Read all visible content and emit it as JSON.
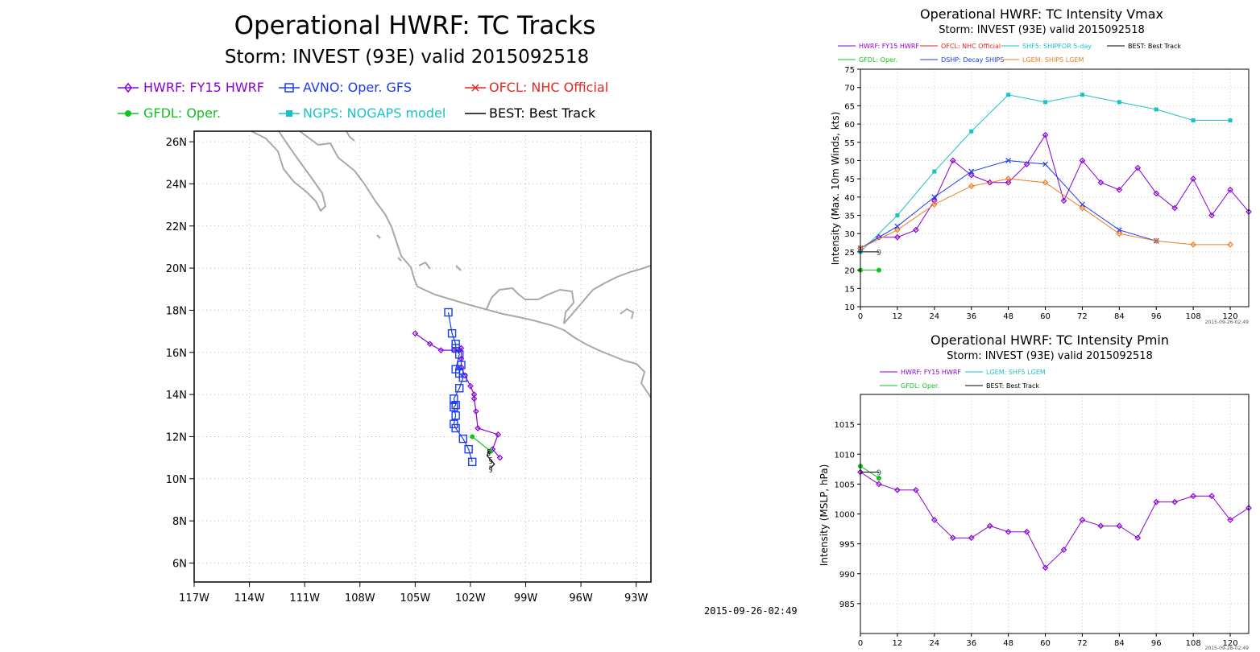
{
  "track_panel": {
    "title": "Operational HWRF: TC Tracks",
    "subtitle": "Storm: INVEST (93E) valid 2015092518",
    "legend": [
      {
        "label": "HWRF: FY15 HWRF",
        "color": "#8a00d8",
        "marker": "diamond"
      },
      {
        "label": "AVNO: Oper. GFS",
        "color": "#1a3cf0",
        "marker": "square-open"
      },
      {
        "label": "OFCL: NHC Official",
        "color": "#e8271e",
        "marker": "x"
      },
      {
        "label": "GFDL: Oper.",
        "color": "#11c31d",
        "marker": "circle"
      },
      {
        "label": "NGPS: NOGAPS model",
        "color": "#19c2c8",
        "marker": "square"
      },
      {
        "label": "BEST: Best Track",
        "color": "#000000",
        "marker": "none"
      }
    ],
    "x_ticks": [
      "117W",
      "114W",
      "111W",
      "108W",
      "105W",
      "102W",
      "99W",
      "96W",
      "93W"
    ],
    "y_ticks": [
      "26N",
      "24N",
      "22N",
      "20N",
      "18N",
      "16N",
      "14N",
      "12N",
      "10N",
      "8N",
      "6N"
    ],
    "timestamp": "2015-09-26-02:49"
  },
  "vmax_panel": {
    "title": "Operational HWRF: TC Intensity Vmax",
    "subtitle": "Storm: INVEST (93E) valid 2015092518",
    "legend": [
      {
        "label": "HWRF: FY15 HWRF",
        "color": "#8a00d8"
      },
      {
        "label": "OFCL: NHC Official",
        "color": "#e8271e"
      },
      {
        "label": "SHF5: SHIPFOR 5-day",
        "color": "#19c2c8"
      },
      {
        "label": "BEST: Best Track",
        "color": "#000000"
      },
      {
        "label": "GFDL: Oper.",
        "color": "#11c31d"
      },
      {
        "label": "DSHP: Decay SHIPS",
        "color": "#1a3cf0"
      },
      {
        "label": "LGEM: SHIPS LGEM",
        "color": "#f07d1e"
      }
    ],
    "ylabel": "Intensity (Max. 10m Winds, kts)",
    "timestamp": "2015-09-26-02:49"
  },
  "pmin_panel": {
    "title": "Operational HWRF: TC Intensity Pmin",
    "subtitle": "Storm: INVEST (93E) valid 2015092518",
    "legend": [
      {
        "label": "HWRF: FY15 HWRF",
        "color": "#8a00d8"
      },
      {
        "label": "LGEM: SHF5 LGEM",
        "color": "#19c2c8"
      },
      {
        "label": "GFDL: Oper.",
        "color": "#11c31d"
      },
      {
        "label": "BEST: Best Track",
        "color": "#000000"
      }
    ],
    "ylabel": "Intensity (MSLP, hPa)",
    "timestamp": "2015-09-26-02:49"
  },
  "chart_data": [
    {
      "type": "scatter",
      "title": "Operational HWRF: TC Tracks",
      "xlim": [
        -117,
        -92.2
      ],
      "ylim": [
        5.1,
        26.5
      ],
      "grid": true,
      "series": [
        {
          "name": "HWRF: FY15 HWRF",
          "color": "#8a00d8",
          "points": [
            [
              -100.4,
              11.0
            ],
            [
              -100.8,
              11.4
            ],
            [
              -100.5,
              12.1
            ],
            [
              -101.6,
              12.4
            ],
            [
              -101.7,
              13.2
            ],
            [
              -101.8,
              13.8
            ],
            [
              -101.8,
              14.0
            ],
            [
              -102.0,
              14.4
            ],
            [
              -102.3,
              14.9
            ],
            [
              -102.5,
              15.3
            ],
            [
              -102.5,
              15.7
            ],
            [
              -102.5,
              16.2
            ],
            [
              -102.6,
              16.1
            ],
            [
              -102.9,
              16.1
            ],
            [
              -103.6,
              16.1
            ],
            [
              -104.2,
              16.4
            ],
            [
              -105.0,
              16.9
            ]
          ]
        },
        {
          "name": "AVNO: Oper. GFS",
          "color": "#1a3cf0",
          "points": [
            [
              -101.9,
              10.8
            ],
            [
              -102.1,
              11.4
            ],
            [
              -102.4,
              11.9
            ],
            [
              -102.8,
              12.4
            ],
            [
              -102.9,
              12.6
            ],
            [
              -102.8,
              13.0
            ],
            [
              -102.9,
              13.4
            ],
            [
              -102.8,
              13.5
            ],
            [
              -102.9,
              13.8
            ],
            [
              -102.6,
              14.3
            ],
            [
              -102.4,
              14.8
            ],
            [
              -102.6,
              15.0
            ],
            [
              -102.5,
              15.4
            ],
            [
              -102.8,
              15.2
            ],
            [
              -102.6,
              15.9
            ],
            [
              -102.8,
              16.2
            ],
            [
              -102.8,
              16.4
            ],
            [
              -103.0,
              16.9
            ],
            [
              -103.2,
              17.9
            ]
          ]
        },
        {
          "name": "GFDL: Oper.",
          "color": "#11c31d",
          "points": [
            [
              -101.9,
              12.0
            ],
            [
              -100.9,
              11.3
            ]
          ]
        },
        {
          "name": "BEST: Best Track",
          "color": "#000000",
          "points": [
            [
              -101.0,
              11.3
            ],
            [
              -101.1,
              11.1
            ],
            [
              -100.9,
              10.9
            ],
            [
              -100.7,
              10.7
            ],
            [
              -100.9,
              10.5
            ]
          ]
        }
      ]
    },
    {
      "type": "line",
      "title": "Operational HWRF: TC Intensity Vmax",
      "xlabel": "",
      "ylabel": "Intensity (Max. 10m Winds, kts)",
      "xlim": [
        0,
        126
      ],
      "ylim": [
        10,
        75
      ],
      "x_ticks": [
        0,
        12,
        24,
        36,
        48,
        60,
        72,
        84,
        96,
        108,
        120
      ],
      "y_ticks": [
        10,
        15,
        20,
        25,
        30,
        35,
        40,
        45,
        50,
        55,
        60,
        65,
        70,
        75
      ],
      "grid": true,
      "series": [
        {
          "name": "HWRF: FY15 HWRF",
          "color": "#8a00d8",
          "x": [
            0,
            6,
            12,
            18,
            24,
            30,
            36,
            42,
            48,
            54,
            60,
            66,
            72,
            78,
            84,
            90,
            96,
            102,
            108,
            114,
            120,
            126
          ],
          "y": [
            26,
            29,
            29,
            31,
            39,
            50,
            46,
            44,
            44,
            49,
            57,
            39,
            50,
            44,
            42,
            48,
            41,
            37,
            45,
            35,
            42,
            36
          ]
        },
        {
          "name": "SHF5: SHIPFOR 5-day",
          "color": "#19c2c8",
          "x": [
            0,
            12,
            24,
            36,
            48,
            60,
            72,
            84,
            96,
            108,
            120
          ],
          "y": [
            25,
            35,
            47,
            58,
            68,
            66,
            68,
            66,
            64,
            61,
            61
          ]
        },
        {
          "name": "DSHP: Decay SHIPS",
          "color": "#1a3cf0",
          "x": [
            0,
            12,
            24,
            36,
            48,
            60,
            72,
            84,
            96
          ],
          "y": [
            26,
            32,
            40,
            47,
            50,
            49,
            38,
            31,
            28
          ]
        },
        {
          "name": "LGEM: SHIPS LGEM",
          "color": "#f07d1e",
          "x": [
            0,
            12,
            24,
            36,
            48,
            60,
            72,
            84,
            96,
            108,
            120
          ],
          "y": [
            26,
            31,
            38,
            43,
            45,
            44,
            37,
            30,
            28,
            27,
            27
          ]
        },
        {
          "name": "GFDL: Oper.",
          "color": "#11c31d",
          "x": [
            0,
            6
          ],
          "y": [
            20,
            20
          ]
        },
        {
          "name": "BEST: Best Track",
          "color": "#000000",
          "x": [
            0,
            6
          ],
          "y": [
            25,
            25
          ]
        }
      ]
    },
    {
      "type": "line",
      "title": "Operational HWRF: TC Intensity Pmin",
      "xlabel": "",
      "ylabel": "Intensity (MSLP, hPa)",
      "xlim": [
        0,
        126
      ],
      "ylim": [
        980,
        1020
      ],
      "x_ticks": [
        0,
        12,
        24,
        36,
        48,
        60,
        72,
        84,
        96,
        108,
        120
      ],
      "y_ticks": [
        985,
        990,
        995,
        1000,
        1005,
        1010,
        1015
      ],
      "grid": true,
      "series": [
        {
          "name": "HWRF: FY15 HWRF",
          "color": "#8a00d8",
          "x": [
            0,
            6,
            12,
            18,
            24,
            30,
            36,
            42,
            48,
            54,
            60,
            66,
            72,
            78,
            84,
            90,
            96,
            102,
            108,
            114,
            120,
            126
          ],
          "y": [
            1007,
            1005,
            1004,
            1004,
            999,
            996,
            996,
            998,
            997,
            997,
            991,
            994,
            999,
            998,
            998,
            996,
            1002,
            1002,
            1003,
            1003,
            999,
            1001
          ]
        },
        {
          "name": "GFDL: Oper.",
          "color": "#11c31d",
          "x": [
            0,
            6
          ],
          "y": [
            1008,
            1006
          ]
        },
        {
          "name": "BEST: Best Track",
          "color": "#000000",
          "x": [
            0,
            6
          ],
          "y": [
            1007,
            1007
          ]
        }
      ]
    }
  ]
}
